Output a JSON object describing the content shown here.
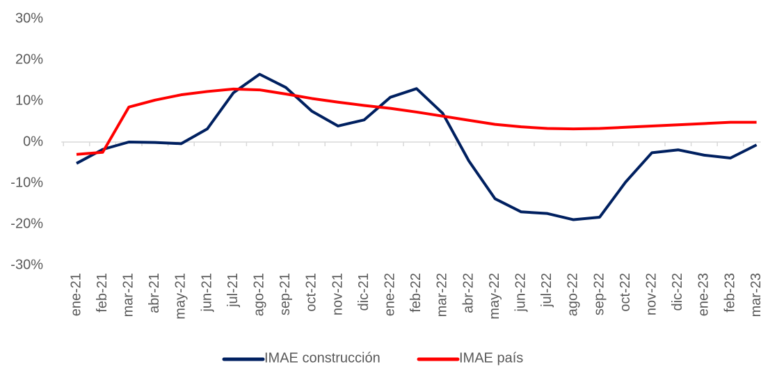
{
  "chart_data": {
    "type": "line",
    "categories": [
      "ene-21",
      "feb-21",
      "mar-21",
      "abr-21",
      "may-21",
      "jun-21",
      "jul-21",
      "ago-21",
      "sep-21",
      "oct-21",
      "nov-21",
      "dic-21",
      "ene-22",
      "feb-22",
      "mar-22",
      "abr-22",
      "may-22",
      "jun-22",
      "jul-22",
      "ago-22",
      "sep-22",
      "oct-22",
      "nov-22",
      "dic-22",
      "ene-23",
      "feb-23",
      "mar-23"
    ],
    "series": [
      {
        "name": "IMAE construcción",
        "color": "#002060",
        "values": [
          -5.2,
          -1.8,
          0.0,
          -0.1,
          -0.4,
          3.2,
          12.0,
          16.5,
          13.3,
          7.5,
          3.9,
          5.4,
          10.9,
          13.0,
          7.0,
          -4.6,
          -13.8,
          -17.0,
          -17.4,
          -18.9,
          -18.3,
          -9.7,
          -2.6,
          -1.9,
          -3.2,
          -3.9,
          -0.7
        ]
      },
      {
        "name": "IMAE país",
        "color": "#ff0000",
        "values": [
          -3.0,
          -2.5,
          8.5,
          10.2,
          11.5,
          12.3,
          12.9,
          12.7,
          11.7,
          10.6,
          9.7,
          8.9,
          8.2,
          7.3,
          6.3,
          5.3,
          4.3,
          3.7,
          3.3,
          3.2,
          3.3,
          3.6,
          3.9,
          4.2,
          4.5,
          4.8,
          4.8
        ]
      }
    ],
    "ylim": [
      -30,
      30
    ],
    "yticks": [
      {
        "value": -30,
        "label": "-30%"
      },
      {
        "value": -20,
        "label": "-20%"
      },
      {
        "value": -10,
        "label": "-10%"
      },
      {
        "value": 0,
        "label": "0%"
      },
      {
        "value": 10,
        "label": "10%"
      },
      {
        "value": 20,
        "label": "20%"
      },
      {
        "value": 30,
        "label": "30%"
      }
    ],
    "grid": false,
    "legend": "bottom"
  }
}
